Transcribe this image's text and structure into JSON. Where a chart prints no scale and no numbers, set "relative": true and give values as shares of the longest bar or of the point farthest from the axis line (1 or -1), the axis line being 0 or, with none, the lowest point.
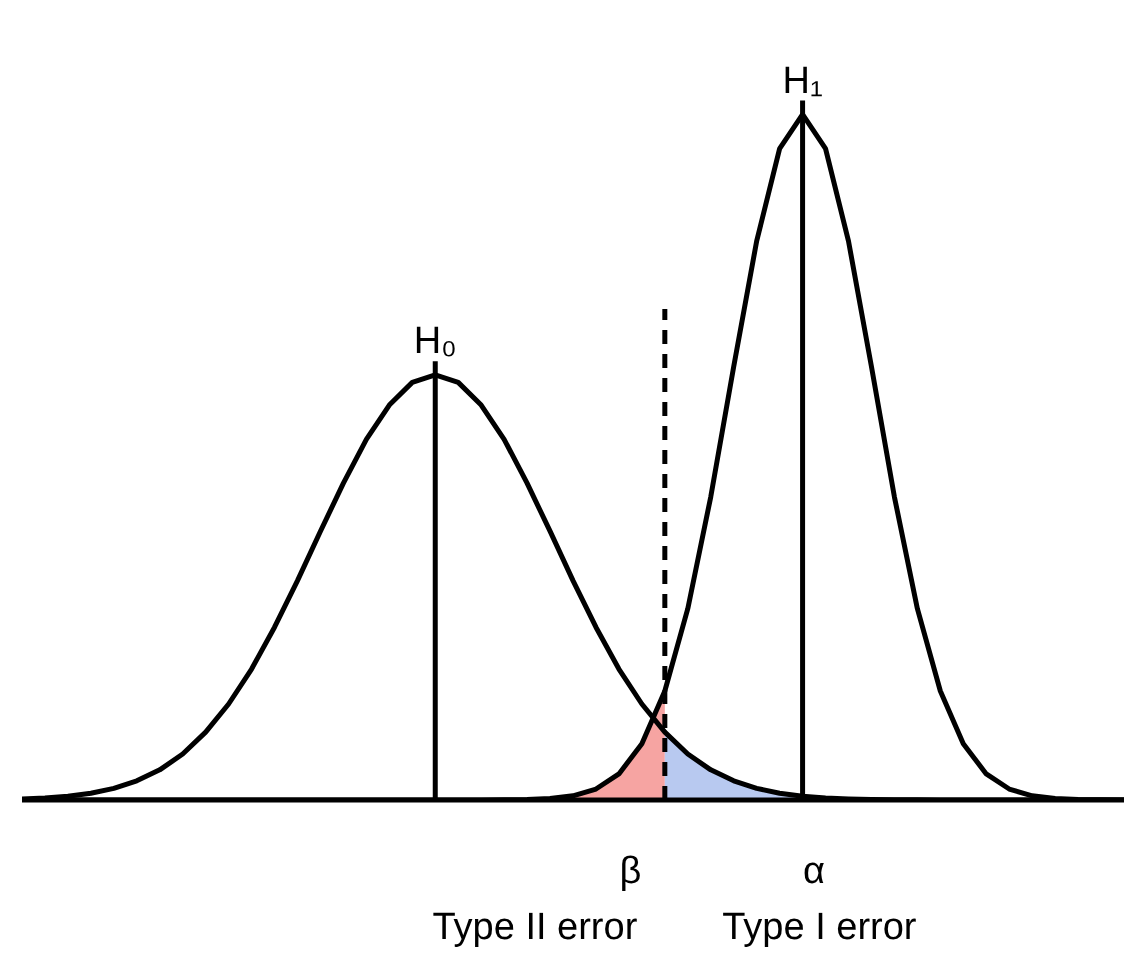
{
  "chart_data": {
    "type": "line",
    "relative": true,
    "categories": [
      null,
      null,
      null,
      null,
      null,
      null,
      null,
      null,
      null,
      null,
      null,
      null,
      null,
      null,
      null,
      null,
      null,
      null,
      null,
      null,
      null,
      null,
      null,
      null,
      null,
      null,
      null,
      null,
      null,
      null,
      null,
      null,
      null,
      null,
      null,
      null,
      null,
      null,
      null,
      null,
      null,
      null,
      null,
      null,
      null,
      null,
      null,
      null,
      null
    ],
    "series": [
      {
        "type": "area",
        "name": "β",
        "color": "#f6a4a2",
        "values": [
          null,
          null,
          null,
          null,
          null,
          null,
          null,
          null,
          null,
          null,
          null,
          null,
          null,
          null,
          null,
          null,
          null,
          null,
          null,
          null,
          null,
          null,
          null,
          0.0021,
          0.0061,
          0.016,
          0.038,
          0.082,
          0.159,
          null,
          null,
          null,
          null,
          null,
          null,
          null,
          null,
          null,
          null,
          null,
          null,
          null,
          null,
          null,
          null,
          null,
          null,
          null,
          null
        ]
      },
      {
        "type": "area",
        "name": "α",
        "color": "#b8c9f0",
        "values": [
          null,
          null,
          null,
          null,
          null,
          null,
          null,
          null,
          null,
          null,
          null,
          null,
          null,
          null,
          null,
          null,
          null,
          null,
          null,
          null,
          null,
          null,
          null,
          null,
          null,
          null,
          null,
          null,
          0.099,
          0.067,
          0.044,
          0.028,
          0.017,
          0.0099,
          0.0056,
          0.0031,
          0.0016,
          0.0008,
          0.0004,
          0.0002,
          null,
          null,
          null,
          null,
          null,
          null,
          null,
          null,
          null
        ]
      },
      {
        "name": "H₀",
        "color": "#000000",
        "values": [
          0.0016,
          0.0031,
          0.0056,
          0.0099,
          0.017,
          0.028,
          0.044,
          0.067,
          0.099,
          0.14,
          0.191,
          0.252,
          0.32,
          0.392,
          0.462,
          0.526,
          0.576,
          0.609,
          0.62,
          0.609,
          0.576,
          0.526,
          0.462,
          0.392,
          0.32,
          0.252,
          0.191,
          0.14,
          0.099,
          0.067,
          0.044,
          0.028,
          0.017,
          0.0099,
          0.0056,
          0.0031,
          0.0016,
          0.0008,
          0.0004,
          0.0002,
          0,
          0,
          0,
          0,
          0,
          0,
          0,
          0,
          0
        ]
      },
      {
        "name": "H₁",
        "color": "#000000",
        "values": [
          0,
          0,
          0,
          0,
          0,
          0,
          0,
          0,
          0,
          0,
          0,
          0,
          0,
          0,
          0,
          0,
          0,
          0,
          0,
          0,
          0,
          0.0002,
          0.0006,
          0.0021,
          0.0061,
          0.016,
          0.038,
          0.082,
          0.159,
          0.279,
          0.442,
          0.632,
          0.815,
          0.95,
          1,
          0.95,
          0.815,
          0.632,
          0.442,
          0.279,
          0.159,
          0.082,
          0.038,
          0.016,
          0.0061,
          0.0021,
          0.0006,
          0.0002,
          0
        ]
      }
    ],
    "ref_lines": [
      {
        "axis": "x",
        "color": "#000000",
        "line_style": "dashed"
      }
    ],
    "annotations": [
      "Type II error",
      "Type I error"
    ]
  }
}
